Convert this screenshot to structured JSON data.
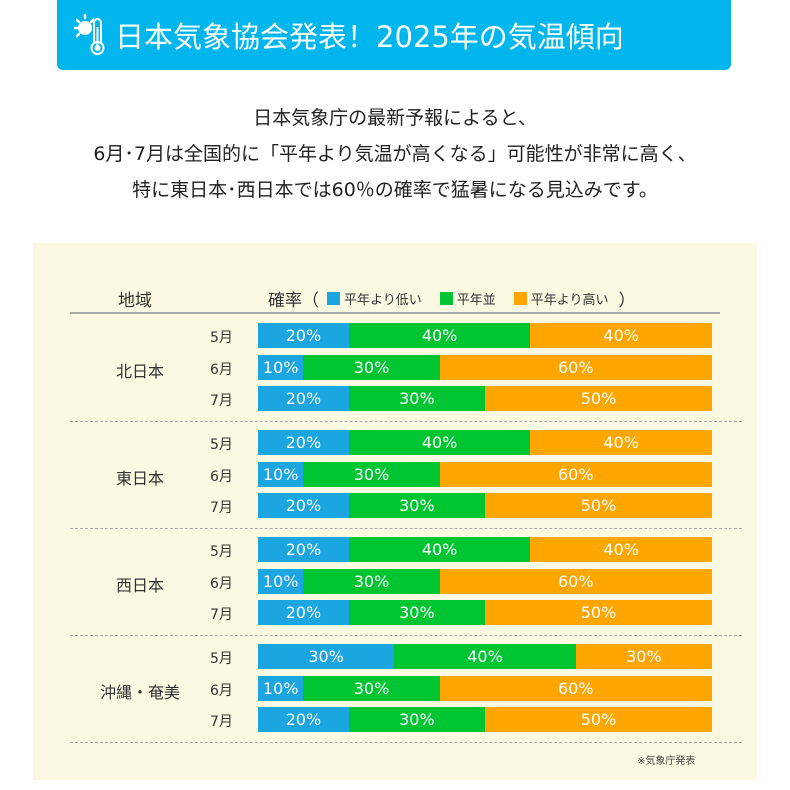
{
  "banner": {
    "title": "日本気象協会発表！2025年の気温傾向",
    "icon": "sun-thermometer-icon"
  },
  "intro": [
    "日本気象庁の最新予報によると、",
    "6月･7月は全国的に「平年より気温が高くなる」可能性が非常に高く、",
    "特に東日本･西日本では60％の確率で猛暑になる見込みです。"
  ],
  "chart_data": {
    "type": "bar",
    "orientation": "horizontal",
    "stacked": true,
    "header_region": "地域",
    "header_prob": "確率（",
    "header_close": "）",
    "legend": [
      {
        "name": "平年より低い",
        "color": "#1ba5e1"
      },
      {
        "name": "平年並",
        "color": "#00c532"
      },
      {
        "name": "平年より高い",
        "color": "#ffa600"
      }
    ],
    "groups": [
      {
        "region": "北日本",
        "rows": [
          {
            "month": "5月",
            "values": [
              20,
              40,
              40
            ]
          },
          {
            "month": "6月",
            "values": [
              10,
              30,
              60
            ]
          },
          {
            "month": "7月",
            "values": [
              20,
              30,
              50
            ]
          }
        ]
      },
      {
        "region": "東日本",
        "rows": [
          {
            "month": "5月",
            "values": [
              20,
              40,
              40
            ]
          },
          {
            "month": "6月",
            "values": [
              10,
              30,
              60
            ]
          },
          {
            "month": "7月",
            "values": [
              20,
              30,
              50
            ]
          }
        ]
      },
      {
        "region": "西日本",
        "rows": [
          {
            "month": "5月",
            "values": [
              20,
              40,
              40
            ]
          },
          {
            "month": "6月",
            "values": [
              10,
              30,
              60
            ]
          },
          {
            "month": "7月",
            "values": [
              20,
              30,
              50
            ]
          }
        ]
      },
      {
        "region": "沖縄・奄美",
        "rows": [
          {
            "month": "5月",
            "values": [
              30,
              40,
              30
            ]
          },
          {
            "month": "6月",
            "values": [
              10,
              30,
              60
            ]
          },
          {
            "month": "7月",
            "values": [
              20,
              30,
              50
            ]
          }
        ]
      }
    ],
    "unit": "%",
    "note": "※気象庁発表"
  }
}
